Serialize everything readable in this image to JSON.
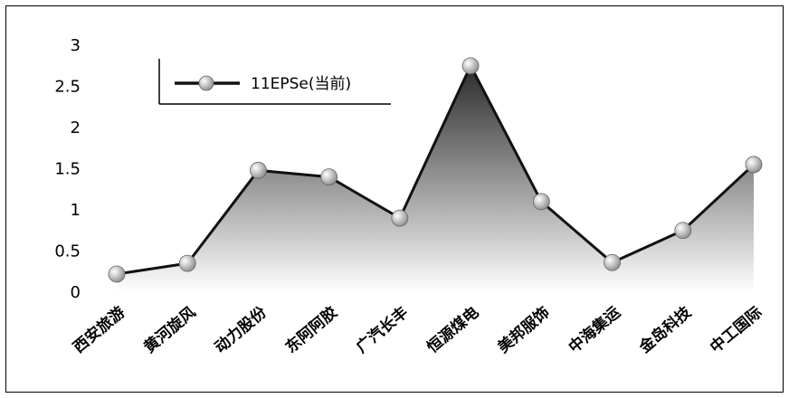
{
  "chart_data": {
    "type": "area",
    "categories": [
      "西安旅游",
      "黄河旋风",
      "动力股份",
      "东阿阿胶",
      "广汽长丰",
      "恒源煤电",
      "美邦服饰",
      "中海集运",
      "金岛科技",
      "中工国际"
    ],
    "series": [
      {
        "name": "11EPSe(当前)",
        "values": [
          0.22,
          0.35,
          1.48,
          1.4,
          0.9,
          2.75,
          1.1,
          0.36,
          0.75,
          1.55
        ]
      }
    ],
    "yticks": [
      "0",
      "0.5",
      "1",
      "1.5",
      "2",
      "2.5",
      "3"
    ],
    "ylim": [
      0,
      3
    ],
    "grid": false,
    "legend_position": "top-left",
    "colors": {
      "line": "#111111",
      "fill_top": "#2a2a2a",
      "fill_bottom": "#ffffff",
      "marker": "#c8c8c8"
    }
  }
}
